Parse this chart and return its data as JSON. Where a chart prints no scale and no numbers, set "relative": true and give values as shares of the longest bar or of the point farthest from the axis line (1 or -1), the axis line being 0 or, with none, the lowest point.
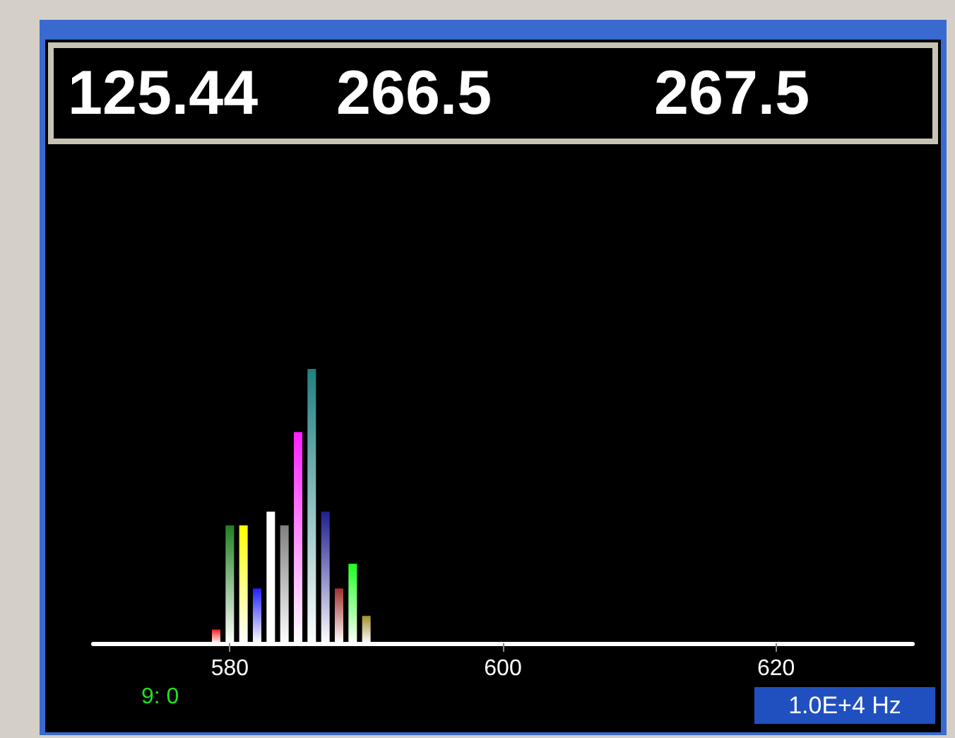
{
  "chart_data": {
    "type": "bar",
    "relative": true,
    "x": [
      579,
      580,
      581,
      582,
      583,
      584,
      585,
      586,
      587,
      588,
      589,
      590
    ],
    "values": [
      0.05,
      0.43,
      0.43,
      0.2,
      0.48,
      0.43,
      0.77,
      1,
      0.48,
      0.2,
      0.29,
      0.1
    ],
    "colors": [
      "#ff2020",
      "#208020",
      "#ffff00",
      "#2020ff",
      "#ffffff",
      "#808080",
      "#ff20ff",
      "#208080",
      "#202090",
      "#a03030",
      "#20ff20",
      "#a09030"
    ],
    "xlim": [
      570,
      630
    ],
    "xticks": [
      580,
      600,
      620
    ],
    "xlabel": "1.0E+4 Hz",
    "annotations": [
      "125.44",
      "266.5",
      "267.5",
      "9: 0"
    ],
    "grid": false
  }
}
